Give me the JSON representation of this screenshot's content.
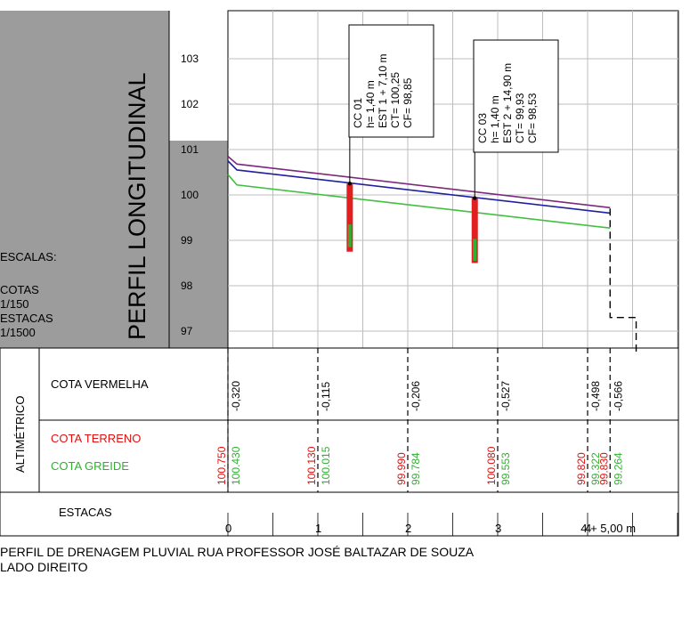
{
  "title_block": {
    "vertical_title": "PERFIL LONGITUDINAL",
    "scales_label": "ESCALAS:",
    "cotas_label": "COTAS",
    "cotas_scale": "1/150",
    "estacas_label": "ESTACAS",
    "estacas_scale": "1/1500"
  },
  "elevation_axis": {
    "ticks": [
      "103",
      "102",
      "101",
      "100",
      "99",
      "98",
      "97"
    ],
    "values": [
      103,
      102,
      101,
      100,
      99,
      98,
      97
    ],
    "range": [
      96.5,
      104
    ]
  },
  "rows": {
    "altimetrico_label": "ALTIMÉTRICO",
    "cota_vermelha_label": "COTA VERMELHA",
    "cota_terreno_label": "COTA TERRENO",
    "cota_greide_label": "COTA GREIDE",
    "estacas_label": "ESTACAS"
  },
  "stations": {
    "labels": [
      "0",
      "1",
      "2",
      "3",
      "4",
      "4 + 5,00 m"
    ],
    "station_values": [
      0,
      1,
      2,
      3,
      4,
      4.25
    ]
  },
  "table_columns": [
    {
      "station": 0,
      "cota_vermelha": "-0,320",
      "cota_terreno": "100.750",
      "cota_greide": "100.430"
    },
    {
      "station": 1,
      "cota_vermelha": "-0,115",
      "cota_terreno": "100.130",
      "cota_greide": "100.015"
    },
    {
      "station": 2,
      "cota_vermelha": "-0,206",
      "cota_terreno": "99.990",
      "cota_greide": "99.784"
    },
    {
      "station": 3,
      "cota_vermelha": "-0,527",
      "cota_terreno": "100.080",
      "cota_greide": "99.553"
    },
    {
      "station": 4,
      "cota_vermelha": "-0,498",
      "cota_terreno": "99.820",
      "cota_greide": "99.322"
    },
    {
      "station": 4.25,
      "cota_vermelha": "-0,566",
      "cota_terreno": "99.830",
      "cota_greide": "99.264"
    }
  ],
  "profile_lines": [
    {
      "color": "#7b2a7b",
      "points": [
        [
          0,
          100.85
        ],
        [
          0.1,
          100.68
        ],
        [
          4.25,
          99.72
        ]
      ]
    },
    {
      "color": "#2020a0",
      "points": [
        [
          0,
          100.75
        ],
        [
          0.1,
          100.55
        ],
        [
          4.25,
          99.6
        ]
      ]
    },
    {
      "color": "#40c040",
      "points": [
        [
          0,
          100.45
        ],
        [
          0.1,
          100.22
        ],
        [
          4.25,
          99.27
        ]
      ]
    }
  ],
  "drop_line": {
    "points": [
      [
        4.25,
        99.7
      ],
      [
        4.25,
        97.3
      ],
      [
        4.54,
        97.3
      ],
      [
        4.54,
        96.5
      ]
    ]
  },
  "manholes": [
    {
      "station": 1.355,
      "top": 100.25,
      "bottom": 98.75,
      "green_top": 99.35,
      "green_bottom": 98.85,
      "lines": [
        "CC 01",
        "h= 1,40 m",
        "EST 1 + 7,10 m",
        "CT= 100,25",
        "CF= 98,85"
      ]
    },
    {
      "station": 2.745,
      "top": 99.93,
      "bottom": 98.5,
      "green_top": 99.03,
      "green_bottom": 98.55,
      "lines": [
        "CC 03",
        "h= 1,40 m",
        "EST 2 + 14,90 m",
        "CT= 99,93",
        "CF= 98,53"
      ]
    }
  ],
  "caption": {
    "line1": "PERFIL DE DRENAGEM PLUVIAL  RUA PROFESSOR JOSÉ BALTAZAR DE SOUZA",
    "line2": "LADO DIREITO"
  },
  "colors": {
    "title_block_fill": "#9c9c9c",
    "grid": "#bdbdbd",
    "terreno": "#e01010",
    "greide": "#30b030",
    "manhole": "#e02020"
  }
}
